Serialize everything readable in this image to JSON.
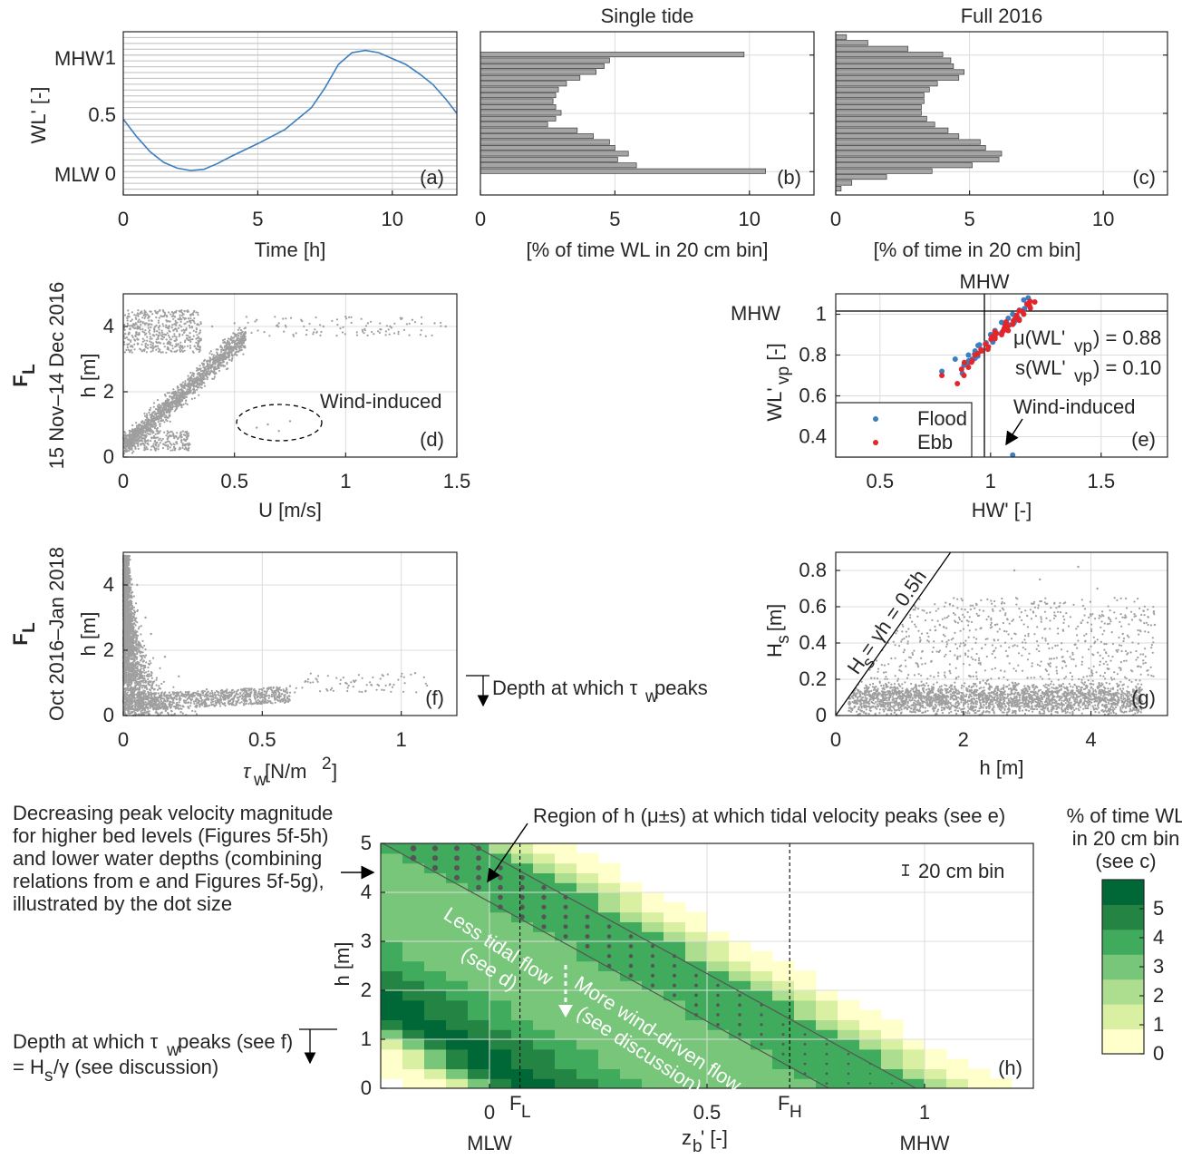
{
  "colors": {
    "line_blue": "#3a7fc0",
    "bar_gray": "#a5a5a5",
    "scatter_gray": "#9f9f9f",
    "flood_blue": "#3a7fc0",
    "ebb_red": "#e3262b",
    "greens": [
      "#ffffcc",
      "#d9f0a3",
      "#addd8e",
      "#78c679",
      "#41ab5d",
      "#238443",
      "#006837"
    ]
  },
  "rows": {
    "row2_label": "15 Nov–14 Dec 2016",
    "row3_label": "Oct 2016–Jan 2018",
    "station_symbol": "F",
    "station_sub": "L"
  },
  "panel_a": {
    "tag": "(a)",
    "ylabel": "WL' [-]",
    "xlabel": "Time [h]",
    "ytick_mhw": "MHW",
    "ytick_mlw": "MLW",
    "ytick_mid": "0.5",
    "ytick_one": "1",
    "ytick_zero": "0",
    "xticks": [
      "0",
      "5",
      "10"
    ]
  },
  "panel_b": {
    "tag": "(b)",
    "title": "Single tide",
    "xlabel": "[% of time WL in 20 cm bin]",
    "xticks": [
      "0",
      "5",
      "10"
    ]
  },
  "panel_c": {
    "tag": "(c)",
    "title": "Full 2016",
    "xlabel": "[% of time in 20 cm bin]",
    "xticks": [
      "0",
      "5",
      "10"
    ]
  },
  "panel_d": {
    "tag": "(d)",
    "ylabel": "h [m]",
    "xlabel": "U [m/s]",
    "annotation": "Wind-induced",
    "xticks": [
      "0",
      "0.5",
      "1",
      "1.5"
    ],
    "yticks": [
      "0",
      "2",
      "4"
    ]
  },
  "panel_e": {
    "tag": "(e)",
    "ylabel_main": "WL'",
    "ylabel_sub": "vp",
    "ylabel_unit": " [-]",
    "xlabel": "HW' [-]",
    "top_label": "MHW",
    "left_label": "MHW",
    "mu_prefix": "μ(WL'",
    "mu_sub": "vp",
    "mu_suffix": ") = 0.88",
    "s_prefix": "s(WL'",
    "s_sub": "vp",
    "s_suffix": ") = 0.10",
    "annotation": "Wind-induced",
    "legend_flood": "Flood",
    "legend_ebb": "Ebb",
    "xticks": [
      "0.5",
      "1",
      "1.5"
    ],
    "yticks": [
      "0.4",
      "0.6",
      "0.8",
      "1"
    ]
  },
  "panel_f": {
    "tag": "(f)",
    "ylabel": "h [m]",
    "xlabel_main": "τ",
    "xlabel_sub": "w",
    "xlabel_unit": " [N/m",
    "xlabel_sup": "2",
    "xlabel_end": "]",
    "annotation_main": "Depth at which τ",
    "annotation_sub": "w",
    "annotation_end": " peaks",
    "xticks": [
      "0",
      "0.5",
      "1"
    ],
    "yticks": [
      "0",
      "2",
      "4"
    ]
  },
  "panel_g": {
    "tag": "(g)",
    "ylabel_main": "H",
    "ylabel_sub": "s",
    "ylabel_unit": " [m]",
    "xlabel": "h [m]",
    "line_label_main": "H",
    "line_label_sub": "s",
    "line_label_end": " = γh = 0.5h",
    "xticks": [
      "0",
      "2",
      "4"
    ],
    "yticks": [
      "0",
      "0.2",
      "0.4",
      "0.6",
      "0.8"
    ]
  },
  "panel_h": {
    "tag": "(h)",
    "ylabel": "h [m]",
    "xlabel_main": "z",
    "xlabel_sub": "b",
    "xlabel_end": "' [-]",
    "xticks": [
      "0",
      "0.5",
      "1"
    ],
    "yticks": [
      "0",
      "1",
      "2",
      "3",
      "4",
      "5"
    ],
    "below_mlw": "MLW",
    "below_mhw": "MHW",
    "fl_main": "F",
    "fl_sub": "L",
    "fh_main": "F",
    "fh_sub": "H",
    "bin_label": "20 cm bin",
    "region_label": "Region of h (μ±s) at which tidal velocity peaks (see e)",
    "less_tidal_1": "Less tidal flow",
    "less_tidal_2": "(see d)",
    "more_wind_1": "More wind-driven flow",
    "more_wind_2": "(see discussion)",
    "left_note": [
      "Decreasing peak velocity magnitude",
      "for higher bed levels (Figures 5f-5h)",
      "and lower water depths (combining",
      "relations from e and Figures 5f-5g),",
      "illustrated by the dot size"
    ],
    "depth_note_1_main": "Depth at which τ",
    "depth_note_1_sub": "w",
    "depth_note_1_end": " peaks (see f)",
    "depth_note_2_main": "= H",
    "depth_note_2_sub": "s",
    "depth_note_2_end": "/γ (see discussion)"
  },
  "colorbar": {
    "title": [
      "% of time WL",
      "in 20 cm bin",
      "(see c)"
    ],
    "ticks": [
      "0",
      "1",
      "2",
      "3",
      "4",
      "5"
    ]
  },
  "chart_data": [
    {
      "panel": "a",
      "type": "line",
      "x": [
        0,
        0.5,
        1,
        1.5,
        2,
        2.5,
        3,
        3.5,
        4,
        5,
        6,
        7,
        7.5,
        8,
        8.5,
        9,
        9.5,
        10,
        10.5,
        11,
        11.5,
        12,
        12.4
      ],
      "y": [
        0.45,
        0.3,
        0.17,
        0.08,
        0.03,
        0.01,
        0.02,
        0.07,
        0.13,
        0.24,
        0.36,
        0.55,
        0.72,
        0.92,
        1.02,
        1.04,
        1.02,
        0.97,
        0.92,
        0.84,
        0.75,
        0.62,
        0.5
      ],
      "xlim": [
        0,
        12.4
      ],
      "ylim": [
        -0.2,
        1.2
      ],
      "xlabel": "Time [h]",
      "ylabel": "WL' [-]"
    },
    {
      "panel": "b",
      "type": "bar",
      "orientation": "horizontal",
      "title": "Single tide",
      "bins": [
        0.0,
        0.05,
        0.1,
        0.15,
        0.2,
        0.25,
        0.3,
        0.35,
        0.4,
        0.45,
        0.5,
        0.55,
        0.6,
        0.65,
        0.7,
        0.75,
        0.8,
        0.85,
        0.9,
        0.95,
        1.0
      ],
      "values": [
        10.6,
        5.8,
        5.1,
        5.5,
        5.0,
        4.8,
        4.2,
        3.6,
        2.5,
        2.8,
        3.0,
        2.8,
        2.7,
        2.8,
        2.9,
        3.2,
        3.7,
        4.3,
        4.6,
        4.8,
        9.8
      ],
      "xlim": [
        0,
        12.4
      ],
      "xlabel": "[% of time WL in 20 cm bin]"
    },
    {
      "panel": "c",
      "type": "bar",
      "orientation": "horizontal",
      "title": "Full 2016",
      "bins": [
        -0.15,
        -0.1,
        -0.05,
        0.0,
        0.05,
        0.1,
        0.15,
        0.2,
        0.25,
        0.3,
        0.35,
        0.4,
        0.45,
        0.5,
        0.55,
        0.6,
        0.65,
        0.7,
        0.75,
        0.8,
        0.85,
        0.9,
        0.95,
        1.0,
        1.05,
        1.1,
        1.15
      ],
      "values": [
        0.2,
        0.6,
        1.9,
        3.6,
        5.1,
        6.1,
        6.2,
        5.6,
        5.4,
        4.6,
        4.2,
        3.7,
        3.4,
        3.2,
        3.2,
        3.3,
        3.3,
        3.5,
        3.8,
        4.6,
        4.8,
        4.4,
        4.3,
        4.0,
        2.7,
        1.2,
        0.4
      ],
      "xlim": [
        0,
        12.4
      ],
      "xlabel": "[% of time in 20 cm bin]"
    },
    {
      "panel": "d",
      "type": "scatter",
      "xlabel": "U [m/s]",
      "ylabel": "h [m]",
      "xlim": [
        0,
        1.5
      ],
      "ylim": [
        0,
        5
      ],
      "x": [
        0.05,
        0.1,
        0.15,
        0.2,
        0.25,
        0.3,
        0.35,
        0.4,
        0.45,
        0.5,
        0.55,
        0.05,
        0.1,
        0.2,
        0.3,
        0.4,
        0.5,
        0.6,
        0.7,
        0.8,
        0.9,
        1.0,
        1.1,
        1.2,
        1.3,
        1.4,
        1.45,
        0.6,
        0.65,
        0.7,
        0.75
      ],
      "y": [
        0.4,
        0.5,
        0.8,
        1.2,
        1.6,
        2.0,
        2.4,
        2.8,
        3.1,
        3.4,
        3.6,
        3.6,
        3.4,
        3.5,
        3.8,
        4.0,
        4.1,
        4.2,
        4.1,
        4.2,
        4.0,
        4.3,
        4.1,
        4.0,
        4.2,
        4.1,
        4.0,
        0.9,
        1.0,
        0.8,
        1.1
      ]
    },
    {
      "panel": "e",
      "type": "scatter",
      "xlabel": "HW' [-]",
      "ylim": [
        0.3,
        1.1
      ],
      "xlim": [
        0.3,
        1.8
      ],
      "series": [
        {
          "name": "Flood",
          "x": [
            0.78,
            0.84,
            0.88,
            0.9,
            0.93,
            0.95,
            0.98,
            1.0,
            1.02,
            1.05,
            1.08,
            1.1,
            1.13,
            1.15,
            1.17,
            1.1
          ],
          "y": [
            0.72,
            0.78,
            0.75,
            0.8,
            0.82,
            0.85,
            0.86,
            0.9,
            0.92,
            0.96,
            0.98,
            1.0,
            1.02,
            1.07,
            1.08,
            0.31
          ]
        },
        {
          "name": "Ebb",
          "x": [
            0.78,
            0.85,
            0.88,
            0.9,
            0.93,
            0.96,
            0.99,
            1.02,
            1.05,
            1.08,
            1.1,
            1.13,
            1.15,
            1.18,
            1.2
          ],
          "y": [
            0.7,
            0.66,
            0.7,
            0.74,
            0.8,
            0.82,
            0.84,
            0.88,
            0.9,
            0.92,
            0.95,
            0.97,
            1.0,
            1.03,
            1.06
          ]
        }
      ],
      "mean": 0.88,
      "std": 0.1
    },
    {
      "panel": "f",
      "type": "scatter",
      "ylabel": "h [m]",
      "xlim": [
        0,
        1.2
      ],
      "ylim": [
        0,
        5
      ],
      "x": [
        0.02,
        0.05,
        0.08,
        0.1,
        0.15,
        0.2,
        0.3,
        0.4,
        0.5,
        0.6,
        0.8,
        1.0,
        1.05,
        0.1,
        0.2,
        0.3
      ],
      "y": [
        4.8,
        4.0,
        3.0,
        2.5,
        1.8,
        1.2,
        0.8,
        0.6,
        0.7,
        0.9,
        1.0,
        1.2,
        1.3,
        0.3,
        0.2,
        0.3
      ]
    },
    {
      "panel": "g",
      "type": "scatter",
      "xlabel": "h [m]",
      "xlim": [
        0,
        5.2
      ],
      "ylim": [
        0,
        0.9
      ],
      "x": [
        0.5,
        1,
        1.5,
        2,
        2.5,
        3,
        3.5,
        4,
        4.5,
        5,
        2.8,
        3.2,
        3.8,
        4.1
      ],
      "y": [
        0.15,
        0.25,
        0.3,
        0.4,
        0.5,
        0.55,
        0.6,
        0.55,
        0.45,
        0.5,
        0.8,
        0.75,
        0.82,
        0.7
      ]
    },
    {
      "panel": "h",
      "type": "heatmap",
      "ylabel": "h [m]",
      "xlim": [
        -0.25,
        1.25
      ],
      "ylim": [
        0,
        5
      ],
      "value_range": [
        0,
        6
      ],
      "vertical_lines_zb": {
        "F_L": 0.07,
        "F_H": 0.69
      }
    }
  ]
}
